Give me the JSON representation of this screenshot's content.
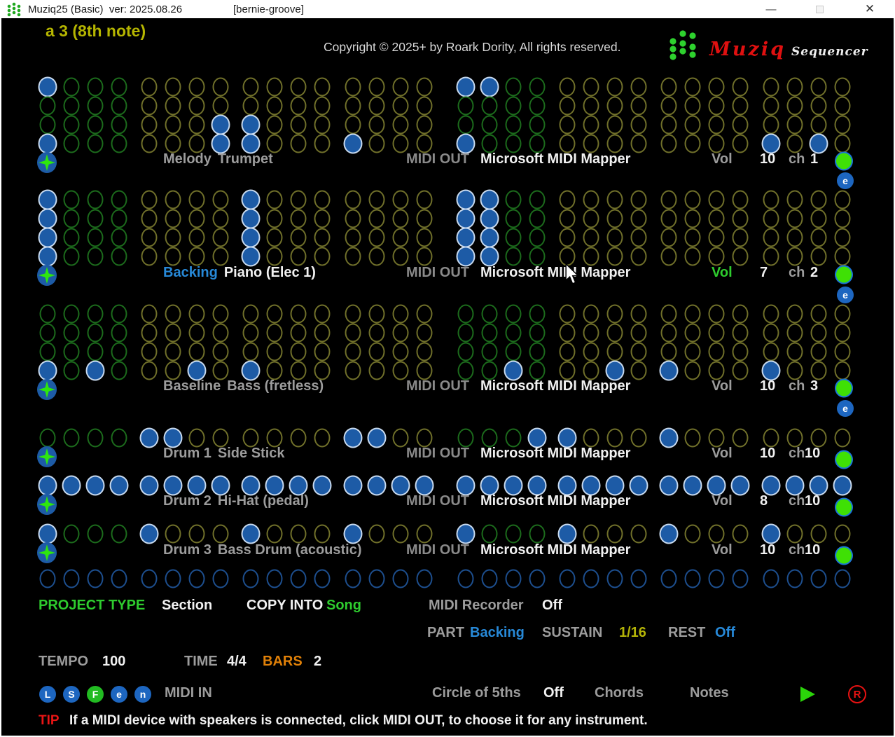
{
  "window": {
    "title": "Muziq25 (Basic)  ver: 2025.08.26",
    "project_name": "[bernie-groove]",
    "minimize_glyph": "—",
    "close_glyph": "✕"
  },
  "header": {
    "position_label": "a 3 (8th note)",
    "copyright": "Copyright © 2025+ by Roark Dority, All rights reserved.",
    "brand_name": "Muziq",
    "brand_suffix": "Sequencer"
  },
  "colors": {
    "note_fill": "#1d5ba6",
    "note_ring": "#c8daef",
    "outline_green": "#1c6b1c",
    "outline_olive": "#70702a",
    "outline_blue": "#1d4f8f",
    "indicator_green": "#3fe005",
    "star_green": "#2ee60e",
    "accent_blue": "#2789d8",
    "accent_green": "#2ecc2e",
    "accent_olive": "#b3b307",
    "accent_orange": "#e08008",
    "accent_red": "#ea1515",
    "brand_red": "#e01010"
  },
  "grid": {
    "columns": 32,
    "bars": 2,
    "beats_per_bar": 4,
    "steps_per_beat": 4
  },
  "tracks": [
    {
      "part": "Melody",
      "instrument": "Trumpet",
      "midi_out_label": "MIDI OUT",
      "midi_device": "Microsoft MIDI Mapper",
      "vol_label": "Vol",
      "vol": "10",
      "ch_label": "ch",
      "ch": "1",
      "edit_badge": "e",
      "rows": [
        [
          1,
          17,
          18
        ],
        [],
        [
          8,
          9
        ],
        [
          1,
          8,
          9,
          13,
          17,
          29,
          31
        ]
      ]
    },
    {
      "part": "Backing",
      "instrument": "Piano (Elec 1)",
      "midi_out_label": "MIDI OUT",
      "midi_device": "Microsoft MIDI Mapper",
      "vol_label": "Vol",
      "vol": "7",
      "ch_label": "ch",
      "ch": "2",
      "edit_badge": "e",
      "rows": [
        [
          1,
          9,
          17,
          18
        ],
        [
          1,
          9,
          17,
          18
        ],
        [
          1,
          9,
          17,
          18
        ],
        [
          1,
          9,
          17,
          18
        ]
      ]
    },
    {
      "part": "Baseline",
      "instrument": "Bass (fretless)",
      "midi_out_label": "MIDI OUT",
      "midi_device": "Microsoft MIDI Mapper",
      "vol_label": "Vol",
      "vol": "10",
      "ch_label": "ch",
      "ch": "3",
      "edit_badge": "e",
      "rows": [
        [],
        [],
        [],
        [
          1,
          3,
          7,
          9,
          19,
          23,
          25,
          29
        ]
      ]
    },
    {
      "part": "Drum 1",
      "instrument": "Side Stick",
      "midi_out_label": "MIDI OUT",
      "midi_device": "Microsoft MIDI Mapper",
      "vol_label": "Vol",
      "vol": "10",
      "ch_label": "ch",
      "ch": "10",
      "rows": [
        [
          5,
          6,
          13,
          14,
          20,
          21,
          25
        ]
      ]
    },
    {
      "part": "Drum 2",
      "instrument": "Hi-Hat (pedal)",
      "midi_out_label": "MIDI OUT",
      "midi_device": "Microsoft MIDI Mapper",
      "vol_label": "Vol",
      "vol": "8",
      "ch_label": "ch",
      "ch": "10",
      "rows": [
        [
          1,
          2,
          3,
          4,
          5,
          6,
          7,
          8,
          9,
          10,
          11,
          12,
          13,
          14,
          15,
          16,
          17,
          18,
          19,
          20,
          21,
          22,
          23,
          24,
          25,
          26,
          27,
          28,
          29,
          30,
          31,
          32
        ]
      ]
    },
    {
      "part": "Drum 3",
      "instrument": "Bass Drum (acoustic)",
      "midi_out_label": "MIDI OUT",
      "midi_device": "Microsoft MIDI Mapper",
      "vol_label": "Vol",
      "vol": "10",
      "ch_label": "ch",
      "ch": "10",
      "rows": [
        [
          1,
          5,
          9,
          13,
          17,
          21,
          25,
          29
        ]
      ]
    }
  ],
  "step_row": {
    "filled": []
  },
  "footer": {
    "project_type_label": "PROJECT TYPE",
    "project_type_value": "Section",
    "copy_into_label": "COPY INTO",
    "copy_into_value": "Song",
    "midi_recorder_label": "MIDI Recorder",
    "midi_recorder_value": "Off",
    "part_label": "PART",
    "part_value": "Backing",
    "sustain_label": "SUSTAIN",
    "sustain_value": "1/16",
    "rest_label": "REST",
    "rest_value": "Off",
    "tempo_label": "TEMPO",
    "tempo_value": "100",
    "time_label": "TIME",
    "time_value": "4/4",
    "bars_label": "BARS",
    "bars_value": "2",
    "mini_buttons": [
      {
        "label": "L"
      },
      {
        "label": "S"
      },
      {
        "label": "F"
      },
      {
        "label": "e"
      },
      {
        "label": "n"
      }
    ],
    "midi_in_label": "MIDI IN",
    "circle5_label": "Circle of 5ths",
    "circle5_value": "Off",
    "chords_label": "Chords",
    "notes_label": "Notes",
    "play_icon": "play-triangle",
    "record_badge": "R",
    "tip_label": "TIP",
    "tip_text": "If a MIDI device with speakers is connected, click MIDI OUT, to choose it for any instrument."
  }
}
